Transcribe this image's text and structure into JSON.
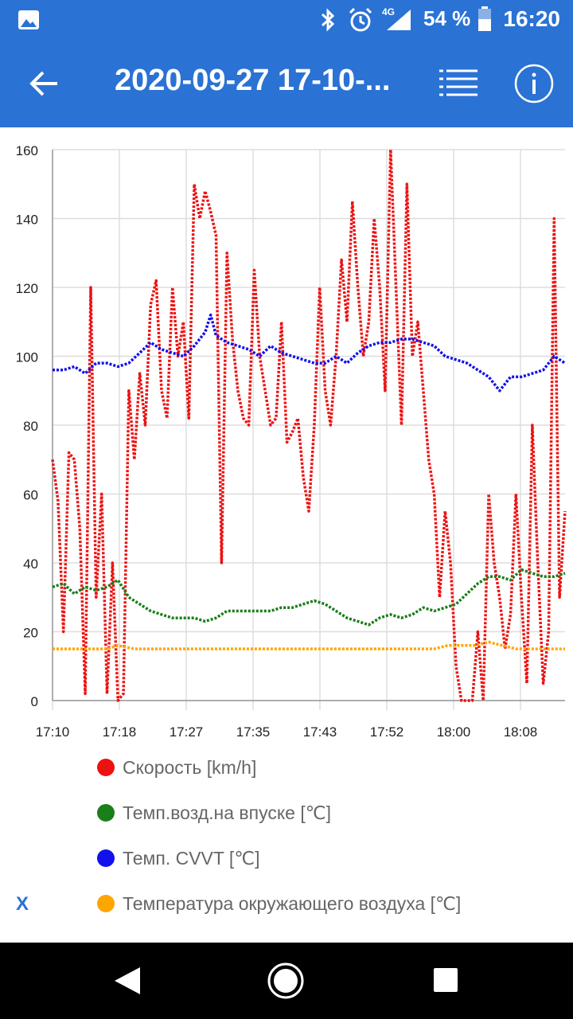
{
  "status_bar": {
    "network_type": "4G",
    "battery_percent": "54 %",
    "time": "16:20"
  },
  "app_bar": {
    "title": "2020-09-27 17-10-...",
    "back_icon": "arrow-left-icon",
    "list_icon": "list-icon",
    "info_icon": "info-icon"
  },
  "legend": {
    "items": [
      {
        "label": "Скорость [km/h]",
        "color": "#ee1111"
      },
      {
        "label": "Темп.возд.на впуске [℃]",
        "color": "#1a7f1a"
      },
      {
        "label": "Темп. CVVT [℃]",
        "color": "#1111ee"
      },
      {
        "label": "Температура окружающего воздуха [℃]",
        "color": "#ffa500"
      }
    ],
    "close_label": "X"
  },
  "chart_data": {
    "type": "line",
    "x_ticks": [
      "17:10",
      "17:18",
      "17:27",
      "17:35",
      "17:43",
      "17:52",
      "18:00",
      "18:08"
    ],
    "y_ticks": [
      0,
      20,
      40,
      60,
      80,
      100,
      120,
      140,
      160
    ],
    "ylim": [
      0,
      160
    ],
    "grid": true,
    "series": [
      {
        "name": "Скорость [km/h]",
        "color": "#ee1111",
        "points": [
          [
            0,
            70
          ],
          [
            2,
            58
          ],
          [
            4,
            20
          ],
          [
            6,
            72
          ],
          [
            8,
            70
          ],
          [
            10,
            50
          ],
          [
            12,
            2
          ],
          [
            14,
            120
          ],
          [
            16,
            30
          ],
          [
            18,
            60
          ],
          [
            20,
            2
          ],
          [
            22,
            40
          ],
          [
            24,
            0
          ],
          [
            26,
            2
          ],
          [
            28,
            90
          ],
          [
            30,
            70
          ],
          [
            32,
            95
          ],
          [
            34,
            80
          ],
          [
            36,
            115
          ],
          [
            38,
            122
          ],
          [
            40,
            90
          ],
          [
            42,
            82
          ],
          [
            44,
            120
          ],
          [
            46,
            100
          ],
          [
            48,
            110
          ],
          [
            50,
            82
          ],
          [
            52,
            150
          ],
          [
            54,
            140
          ],
          [
            56,
            148
          ],
          [
            58,
            142
          ],
          [
            60,
            135
          ],
          [
            62,
            40
          ],
          [
            64,
            130
          ],
          [
            66,
            105
          ],
          [
            68,
            90
          ],
          [
            70,
            82
          ],
          [
            72,
            80
          ],
          [
            74,
            125
          ],
          [
            76,
            100
          ],
          [
            78,
            90
          ],
          [
            80,
            80
          ],
          [
            82,
            82
          ],
          [
            84,
            110
          ],
          [
            86,
            75
          ],
          [
            88,
            78
          ],
          [
            90,
            82
          ],
          [
            92,
            65
          ],
          [
            94,
            55
          ],
          [
            96,
            80
          ],
          [
            98,
            120
          ],
          [
            100,
            90
          ],
          [
            102,
            80
          ],
          [
            104,
            100
          ],
          [
            106,
            128
          ],
          [
            108,
            110
          ],
          [
            110,
            145
          ],
          [
            112,
            120
          ],
          [
            114,
            100
          ],
          [
            116,
            110
          ],
          [
            118,
            140
          ],
          [
            120,
            120
          ],
          [
            122,
            90
          ],
          [
            124,
            160
          ],
          [
            126,
            120
          ],
          [
            128,
            80
          ],
          [
            130,
            150
          ],
          [
            132,
            100
          ],
          [
            134,
            110
          ],
          [
            136,
            90
          ],
          [
            138,
            70
          ],
          [
            140,
            60
          ],
          [
            142,
            30
          ],
          [
            144,
            55
          ],
          [
            146,
            40
          ],
          [
            148,
            10
          ],
          [
            150,
            0
          ],
          [
            152,
            0
          ],
          [
            154,
            0
          ],
          [
            156,
            20
          ],
          [
            158,
            0
          ],
          [
            160,
            60
          ],
          [
            162,
            40
          ],
          [
            164,
            30
          ],
          [
            166,
            15
          ],
          [
            168,
            25
          ],
          [
            170,
            60
          ],
          [
            172,
            30
          ],
          [
            174,
            5
          ],
          [
            176,
            80
          ],
          [
            178,
            40
          ],
          [
            180,
            5
          ],
          [
            182,
            20
          ],
          [
            184,
            140
          ],
          [
            186,
            30
          ],
          [
            188,
            55
          ]
        ]
      },
      {
        "name": "Темп.возд.на впуске [℃]",
        "color": "#1a7f1a",
        "points": [
          [
            0,
            33
          ],
          [
            4,
            34
          ],
          [
            8,
            31
          ],
          [
            12,
            33
          ],
          [
            16,
            32
          ],
          [
            20,
            33
          ],
          [
            24,
            35
          ],
          [
            28,
            30
          ],
          [
            32,
            28
          ],
          [
            36,
            26
          ],
          [
            40,
            25
          ],
          [
            44,
            24
          ],
          [
            48,
            24
          ],
          [
            52,
            24
          ],
          [
            56,
            23
          ],
          [
            60,
            24
          ],
          [
            64,
            26
          ],
          [
            68,
            26
          ],
          [
            72,
            26
          ],
          [
            76,
            26
          ],
          [
            80,
            26
          ],
          [
            84,
            27
          ],
          [
            88,
            27
          ],
          [
            92,
            28
          ],
          [
            96,
            29
          ],
          [
            100,
            28
          ],
          [
            104,
            26
          ],
          [
            108,
            24
          ],
          [
            112,
            23
          ],
          [
            116,
            22
          ],
          [
            120,
            24
          ],
          [
            124,
            25
          ],
          [
            128,
            24
          ],
          [
            132,
            25
          ],
          [
            136,
            27
          ],
          [
            140,
            26
          ],
          [
            144,
            27
          ],
          [
            148,
            28
          ],
          [
            152,
            31
          ],
          [
            156,
            34
          ],
          [
            160,
            36
          ],
          [
            164,
            36
          ],
          [
            168,
            35
          ],
          [
            172,
            38
          ],
          [
            176,
            37
          ],
          [
            180,
            36
          ],
          [
            184,
            36
          ],
          [
            188,
            37
          ]
        ]
      },
      {
        "name": "Темп. CVVT [℃]",
        "color": "#1111ee",
        "points": [
          [
            0,
            96
          ],
          [
            4,
            96
          ],
          [
            8,
            97
          ],
          [
            12,
            95
          ],
          [
            16,
            98
          ],
          [
            20,
            98
          ],
          [
            24,
            97
          ],
          [
            28,
            98
          ],
          [
            32,
            101
          ],
          [
            36,
            104
          ],
          [
            40,
            102
          ],
          [
            44,
            101
          ],
          [
            48,
            100
          ],
          [
            52,
            103
          ],
          [
            56,
            107
          ],
          [
            58,
            112
          ],
          [
            60,
            106
          ],
          [
            64,
            104
          ],
          [
            68,
            103
          ],
          [
            72,
            102
          ],
          [
            76,
            100
          ],
          [
            80,
            103
          ],
          [
            84,
            101
          ],
          [
            88,
            100
          ],
          [
            92,
            99
          ],
          [
            96,
            98
          ],
          [
            100,
            98
          ],
          [
            104,
            100
          ],
          [
            108,
            98
          ],
          [
            112,
            101
          ],
          [
            116,
            103
          ],
          [
            120,
            104
          ],
          [
            124,
            104
          ],
          [
            128,
            105
          ],
          [
            132,
            105
          ],
          [
            136,
            104
          ],
          [
            140,
            103
          ],
          [
            144,
            100
          ],
          [
            148,
            99
          ],
          [
            152,
            98
          ],
          [
            156,
            96
          ],
          [
            160,
            94
          ],
          [
            164,
            90
          ],
          [
            168,
            94
          ],
          [
            172,
            94
          ],
          [
            176,
            95
          ],
          [
            180,
            96
          ],
          [
            184,
            100
          ],
          [
            186,
            99
          ],
          [
            188,
            98
          ]
        ]
      },
      {
        "name": "Температура окружающего воздуха [℃]",
        "color": "#ffa500",
        "points": [
          [
            0,
            15
          ],
          [
            20,
            15
          ],
          [
            24,
            16
          ],
          [
            30,
            15
          ],
          [
            60,
            15
          ],
          [
            90,
            15
          ],
          [
            120,
            15
          ],
          [
            140,
            15
          ],
          [
            145,
            16
          ],
          [
            150,
            16
          ],
          [
            155,
            16
          ],
          [
            160,
            17
          ],
          [
            165,
            16
          ],
          [
            170,
            15
          ],
          [
            175,
            15
          ],
          [
            188,
            15
          ]
        ]
      }
    ]
  },
  "nav_bar": {
    "back_icon": "nav-back-triangle-icon",
    "home_icon": "nav-home-circle-icon",
    "recents_icon": "nav-recents-square-icon"
  }
}
